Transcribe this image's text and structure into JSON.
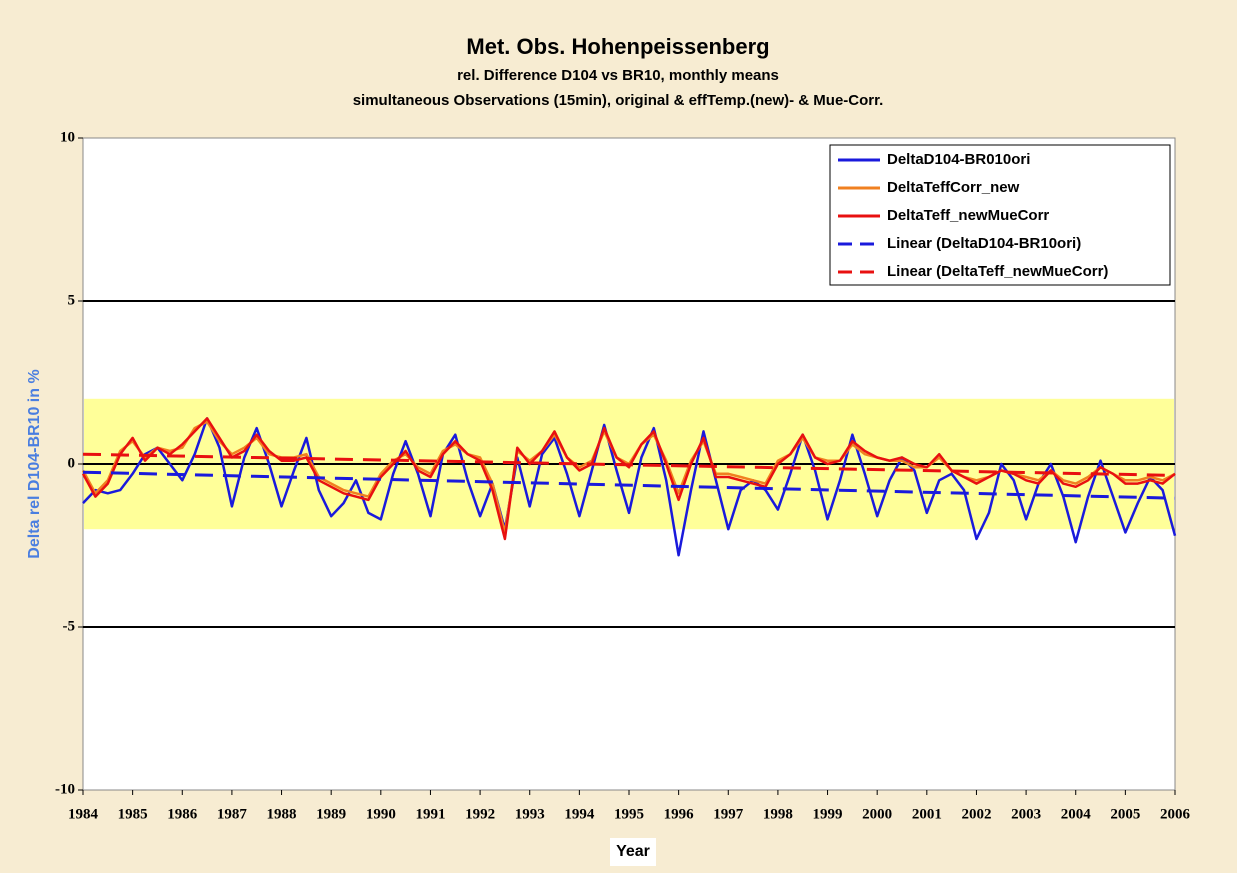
{
  "chart_data": {
    "type": "line",
    "title": "Met. Obs. Hohenpeissenberg",
    "subtitle": [
      "rel. Difference D104 vs BR10, monthly means",
      "simultaneous Observations (15min), original & effTemp.(new)- & Mue-Corr."
    ],
    "xlabel": "Year",
    "ylabel": "Delta rel D104-BR10 in %",
    "xlim": [
      1984,
      2006
    ],
    "ylim": [
      -10,
      10
    ],
    "xticks": [
      1984,
      1985,
      1986,
      1987,
      1988,
      1989,
      1990,
      1991,
      1992,
      1993,
      1994,
      1995,
      1996,
      1997,
      1998,
      1999,
      2000,
      2001,
      2002,
      2003,
      2004,
      2005,
      2006
    ],
    "yticks": [
      -10,
      -5,
      0,
      5,
      10
    ],
    "grid_lines": [
      -5,
      0,
      5
    ],
    "highlight_band": {
      "from": -2,
      "to": 2,
      "color": "#ffff99"
    },
    "x": [
      1984,
      1984.25,
      1984.5,
      1984.75,
      1985,
      1985.25,
      1985.5,
      1985.75,
      1986,
      1986.25,
      1986.5,
      1986.75,
      1987,
      1987.25,
      1987.5,
      1987.75,
      1988,
      1988.25,
      1988.5,
      1988.75,
      1989,
      1989.25,
      1989.5,
      1989.75,
      1990,
      1990.25,
      1990.5,
      1990.75,
      1991,
      1991.25,
      1991.5,
      1991.75,
      1992,
      1992.25,
      1992.5,
      1992.75,
      1993,
      1993.25,
      1993.5,
      1993.75,
      1994,
      1994.25,
      1994.5,
      1994.75,
      1995,
      1995.25,
      1995.5,
      1995.75,
      1996,
      1996.25,
      1996.5,
      1996.75,
      1997,
      1997.25,
      1997.5,
      1997.75,
      1998,
      1998.25,
      1998.5,
      1998.75,
      1999,
      1999.25,
      1999.5,
      1999.75,
      2000,
      2000.25,
      2000.5,
      2000.75,
      2001,
      2001.25,
      2001.5,
      2001.75,
      2002,
      2002.25,
      2002.5,
      2002.75,
      2003,
      2003.25,
      2003.5,
      2003.75,
      2004,
      2004.25,
      2004.5,
      2004.75,
      2005,
      2005.25,
      2005.5,
      2005.75,
      2006
    ],
    "series": [
      {
        "name": "DeltaD104-BR010ori",
        "color": "#1a1adc",
        "values": [
          -1.2,
          -0.8,
          -0.9,
          -0.8,
          -0.3,
          0.3,
          0.5,
          0.0,
          -0.5,
          0.3,
          1.4,
          0.5,
          -1.3,
          0.2,
          1.1,
          0.0,
          -1.3,
          -0.2,
          0.8,
          -0.8,
          -1.6,
          -1.2,
          -0.5,
          -1.5,
          -1.7,
          -0.3,
          0.7,
          -0.3,
          -1.6,
          0.3,
          0.9,
          -0.5,
          -1.6,
          -0.6,
          -2.0,
          0.2,
          -1.3,
          0.3,
          0.8,
          -0.3,
          -1.6,
          -0.2,
          1.2,
          -0.2,
          -1.5,
          0.2,
          1.1,
          -0.5,
          -2.8,
          -0.8,
          1.0,
          -0.5,
          -2.0,
          -0.8,
          -0.5,
          -0.8,
          -1.4,
          -0.3,
          0.9,
          -0.2,
          -1.7,
          -0.5,
          0.9,
          -0.3,
          -1.6,
          -0.5,
          0.2,
          -0.2,
          -1.5,
          -0.5,
          -0.3,
          -0.8,
          -2.3,
          -1.5,
          0.0,
          -0.5,
          -1.7,
          -0.6,
          0.0,
          -1.0,
          -2.4,
          -1.0,
          0.1,
          -1.0,
          -2.1,
          -1.2,
          -0.4,
          -0.8,
          -2.2
        ]
      },
      {
        "name": "DeltaTeffCorr_new",
        "color": "#f08020",
        "values": [
          -0.2,
          -0.9,
          -0.5,
          0.4,
          0.7,
          0.2,
          0.5,
          0.4,
          0.5,
          1.1,
          1.3,
          0.7,
          0.3,
          0.5,
          0.8,
          0.3,
          0.2,
          0.2,
          0.3,
          -0.4,
          -0.6,
          -0.8,
          -0.9,
          -1.0,
          -0.3,
          0.1,
          0.3,
          -0.1,
          -0.3,
          0.4,
          0.6,
          0.3,
          0.2,
          -0.6,
          -2.1,
          0.4,
          0.1,
          0.4,
          0.9,
          0.2,
          -0.1,
          0.1,
          1.0,
          0.2,
          0.0,
          0.6,
          0.9,
          0.1,
          -0.9,
          0.1,
          0.7,
          -0.3,
          -0.3,
          -0.4,
          -0.5,
          -0.6,
          0.1,
          0.3,
          0.8,
          0.2,
          0.1,
          0.1,
          0.6,
          0.3,
          0.2,
          0.1,
          0.1,
          -0.1,
          -0.1,
          0.2,
          -0.2,
          -0.4,
          -0.5,
          -0.4,
          -0.2,
          -0.3,
          -0.4,
          -0.5,
          -0.2,
          -0.5,
          -0.6,
          -0.4,
          -0.1,
          -0.3,
          -0.5,
          -0.5,
          -0.4,
          -0.5,
          -0.3
        ]
      },
      {
        "name": "DeltaTeff_newMueCorr",
        "color": "#e81010",
        "values": [
          -0.3,
          -1.0,
          -0.6,
          0.3,
          0.8,
          0.1,
          0.5,
          0.3,
          0.6,
          1.0,
          1.4,
          0.8,
          0.2,
          0.4,
          0.9,
          0.4,
          0.1,
          0.1,
          0.2,
          -0.5,
          -0.7,
          -0.9,
          -1.0,
          -1.1,
          -0.4,
          0.0,
          0.4,
          -0.2,
          -0.4,
          0.3,
          0.7,
          0.3,
          0.1,
          -0.8,
          -2.3,
          0.5,
          0.0,
          0.4,
          1.0,
          0.2,
          -0.2,
          0.0,
          1.1,
          0.2,
          -0.1,
          0.6,
          1.0,
          0.0,
          -1.1,
          0.0,
          0.8,
          -0.4,
          -0.4,
          -0.5,
          -0.6,
          -0.7,
          0.0,
          0.3,
          0.9,
          0.2,
          0.0,
          0.1,
          0.7,
          0.4,
          0.2,
          0.1,
          0.2,
          0.0,
          -0.1,
          0.3,
          -0.2,
          -0.4,
          -0.6,
          -0.4,
          -0.2,
          -0.3,
          -0.5,
          -0.6,
          -0.2,
          -0.6,
          -0.7,
          -0.5,
          -0.1,
          -0.3,
          -0.6,
          -0.6,
          -0.5,
          -0.6,
          -0.3
        ]
      },
      {
        "name": "Linear (DeltaD104-BR10ori)",
        "color": "#1a1adc",
        "dashed": true,
        "x": [
          1984,
          2006
        ],
        "values": [
          -0.25,
          -1.05
        ]
      },
      {
        "name": "Linear (DeltaTeff_newMueCorr)",
        "color": "#e81010",
        "dashed": true,
        "x": [
          1984,
          2006
        ],
        "values": [
          0.3,
          -0.35
        ]
      }
    ]
  }
}
